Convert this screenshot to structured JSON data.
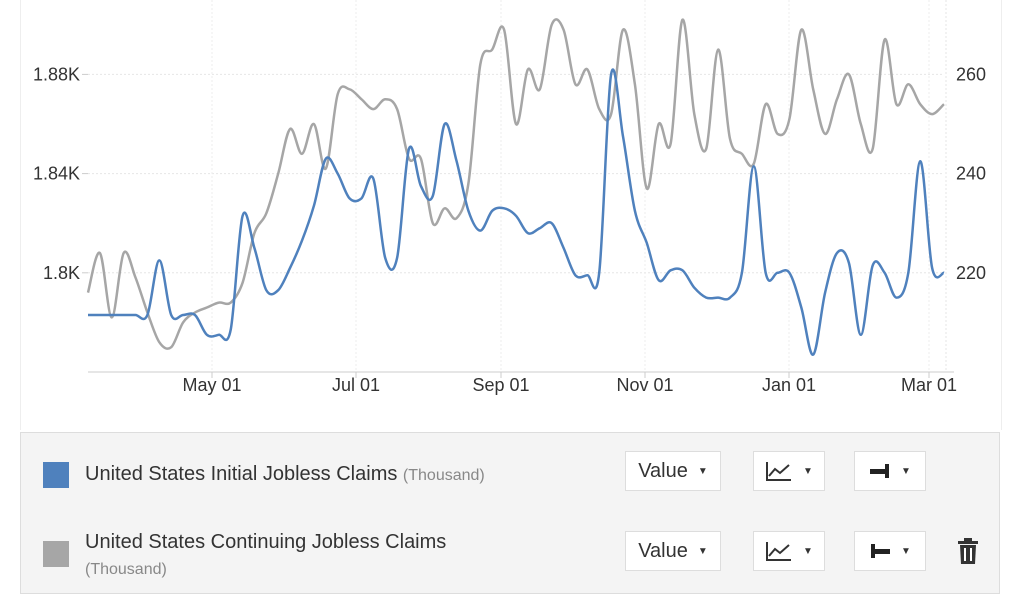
{
  "chart_data": {
    "type": "line",
    "x_ticks": [
      "May 01",
      "Jul 01",
      "Sep 01",
      "Nov 01",
      "Jan 01",
      "Mar 01"
    ],
    "y_left": {
      "ticks": [
        "1.8K",
        "1.84K",
        "1.88K"
      ],
      "values": [
        1800,
        1840,
        1880
      ],
      "range": [
        1760,
        1910
      ]
    },
    "y_right": {
      "ticks": [
        "220",
        "240",
        "260"
      ],
      "values": [
        220,
        240,
        260
      ],
      "range": [
        200,
        275
      ]
    },
    "grid": true,
    "series": [
      {
        "name": "United States Initial Jobless Claims",
        "unit": "Thousand",
        "axis": "left",
        "color": "#4f81bd",
        "values": [
          1783,
          1783,
          1783,
          1783,
          1783,
          1783,
          1805,
          1783,
          1783,
          1783,
          1775,
          1775,
          1777,
          1823,
          1810,
          1793,
          1793,
          1802,
          1813,
          1827,
          1846,
          1840,
          1830,
          1830,
          1838,
          1806,
          1806,
          1850,
          1835,
          1831,
          1860,
          1845,
          1825,
          1817,
          1825,
          1826,
          1823,
          1816,
          1818,
          1820,
          1810,
          1799,
          1799,
          1800,
          1880,
          1855,
          1825,
          1812,
          1797,
          1801,
          1801,
          1794,
          1790,
          1790,
          1790,
          1800,
          1843,
          1800,
          1800,
          1800,
          1786,
          1767,
          1792,
          1808,
          1804,
          1775,
          1803,
          1800,
          1790,
          1800,
          1845,
          1802,
          1800
        ],
        "color_name": "blue"
      },
      {
        "name": "United States Continuing Jobless Claims",
        "unit": "Thousand",
        "axis": "right",
        "color": "#a6a6a6",
        "values": [
          216,
          224,
          211,
          224,
          219,
          212,
          206,
          205,
          210,
          212,
          213,
          214,
          214,
          218,
          228,
          232,
          240,
          249,
          244,
          250,
          241,
          256,
          257,
          255,
          253,
          255,
          253,
          243,
          243,
          230,
          233,
          231,
          238,
          262,
          265,
          269,
          250,
          261,
          257,
          270,
          269,
          258,
          261,
          253,
          252,
          269,
          258,
          237,
          250,
          246,
          271,
          252,
          245,
          265,
          247,
          244,
          242,
          254,
          248,
          251,
          269,
          257,
          248,
          255,
          260,
          250,
          245,
          267,
          254,
          258,
          254,
          252,
          254
        ],
        "color_name": "gray"
      }
    ]
  },
  "legend": {
    "items": [
      {
        "label": "United States Initial Jobless Claims",
        "unit": "(Thousand)",
        "value_label": "Value",
        "color": "#4f81bd"
      },
      {
        "label": "United States Continuing Jobless Claims",
        "unit": "(Thousand)",
        "value_label": "Value",
        "color": "#a6a6a6"
      }
    ],
    "icons": {
      "chart_type": "line-chart-icon",
      "axis_left": "axis-left-icon",
      "axis_right": "axis-right-icon",
      "delete": "trash-icon"
    }
  }
}
